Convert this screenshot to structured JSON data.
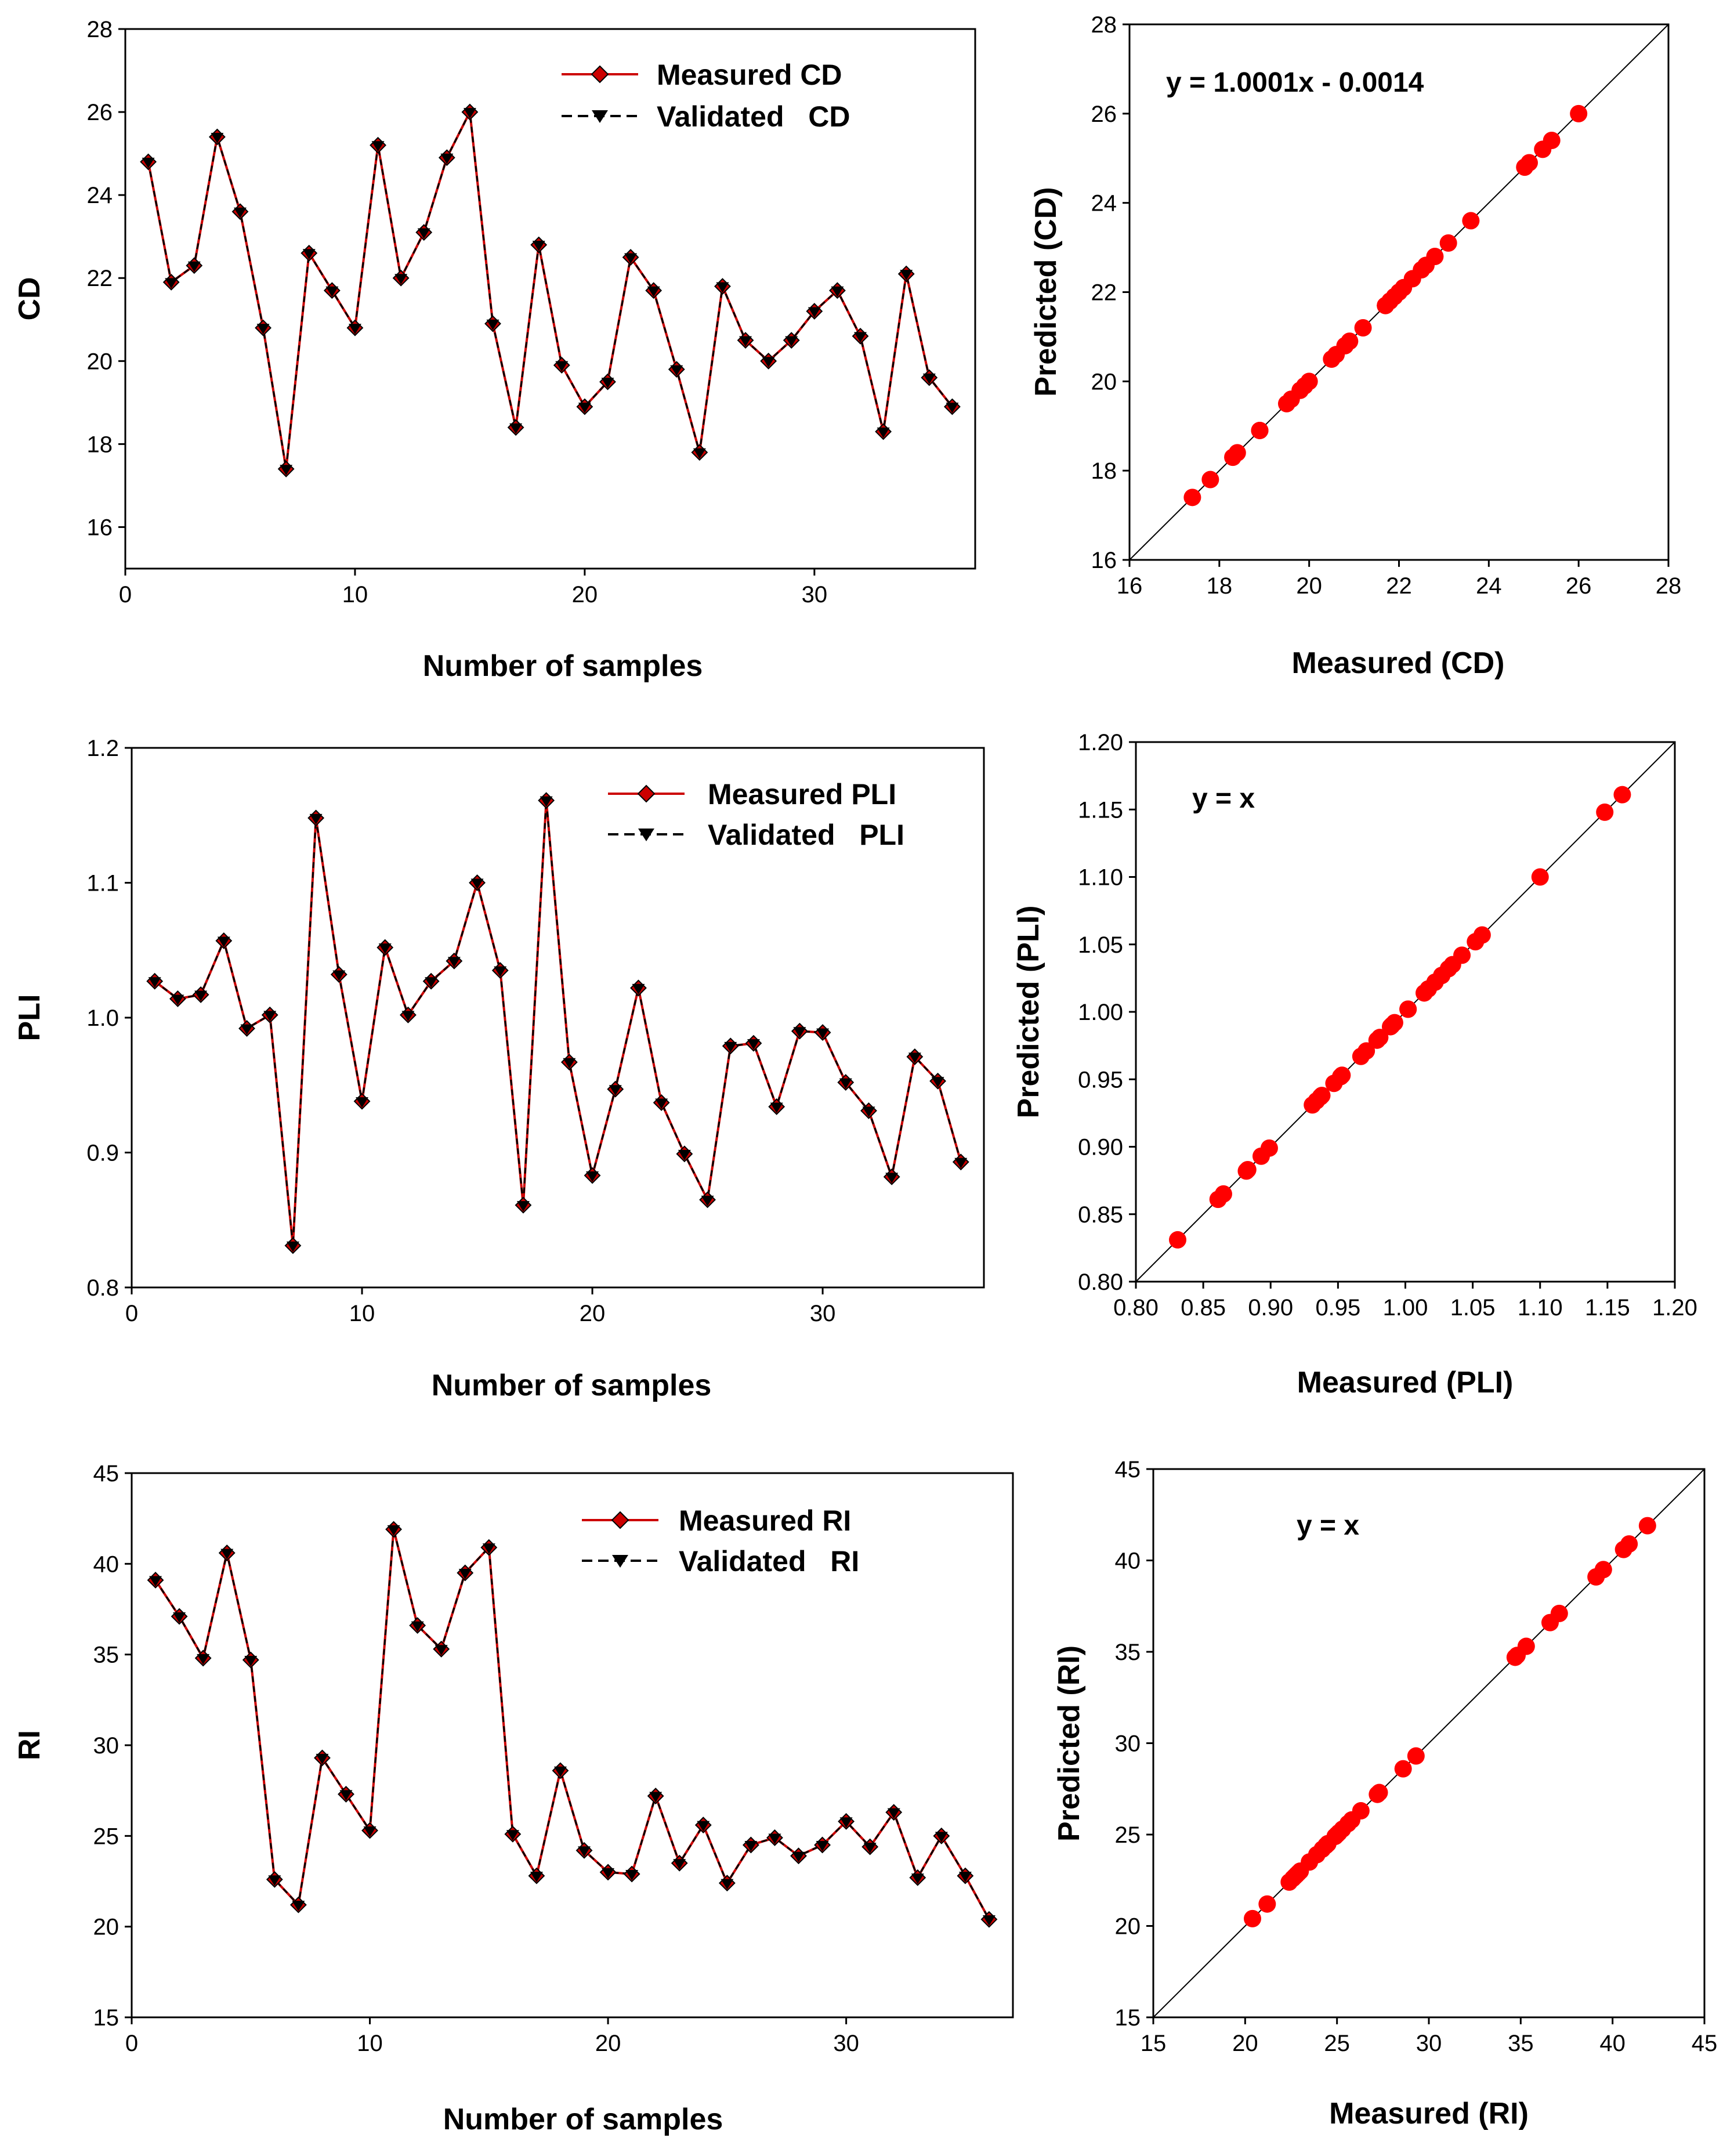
{
  "figure": {
    "colors": {
      "measured": "#cc0000",
      "validated": "#000000",
      "scatter": "#ff0000",
      "axis": "#000000"
    }
  },
  "chart_data": [
    {
      "id": "cd-series",
      "type": "line",
      "title": "",
      "xlabel": "Number of samples",
      "ylabel": "CD",
      "xlim": [
        0,
        37
      ],
      "ylim": [
        15,
        28
      ],
      "xticks": [
        "0",
        "10",
        "20",
        "30"
      ],
      "yticks": [
        "16",
        "18",
        "20",
        "22",
        "24",
        "26",
        "28"
      ],
      "x": [
        1,
        2,
        3,
        4,
        5,
        6,
        7,
        8,
        9,
        10,
        11,
        12,
        13,
        14,
        15,
        16,
        17,
        18,
        19,
        20,
        21,
        22,
        23,
        24,
        25,
        26,
        27,
        28,
        29,
        30,
        31,
        32,
        33,
        34,
        35,
        36
      ],
      "series": [
        {
          "name": "Measured CD",
          "values": [
            24.8,
            21.9,
            22.3,
            25.4,
            23.6,
            20.8,
            17.4,
            22.6,
            21.7,
            20.8,
            25.2,
            22.0,
            23.1,
            24.9,
            26.0,
            20.9,
            18.4,
            22.8,
            19.9,
            18.9,
            19.5,
            22.5,
            21.7,
            19.8,
            17.8,
            21.8,
            20.5,
            20.0,
            20.5,
            21.2,
            21.7,
            20.6,
            18.3,
            22.1,
            19.6,
            18.9
          ]
        },
        {
          "name": "Validated   CD",
          "values": [
            24.8,
            21.9,
            22.3,
            25.4,
            23.6,
            20.8,
            17.4,
            22.6,
            21.7,
            20.8,
            25.2,
            22.0,
            23.1,
            24.9,
            26.0,
            20.9,
            18.4,
            22.8,
            19.9,
            18.9,
            19.5,
            22.5,
            21.7,
            19.8,
            17.8,
            21.8,
            20.5,
            20.0,
            20.5,
            21.2,
            21.7,
            20.6,
            18.3,
            22.1,
            19.6,
            18.9
          ]
        }
      ]
    },
    {
      "id": "cd-scatter",
      "type": "scatter",
      "title": "",
      "xlabel": "Measured (CD)",
      "ylabel": "Predicted (CD)",
      "xlim": [
        16,
        28
      ],
      "ylim": [
        16,
        28
      ],
      "xticks": [
        "16",
        "18",
        "20",
        "22",
        "24",
        "26",
        "28"
      ],
      "yticks": [
        "16",
        "18",
        "20",
        "22",
        "24",
        "26",
        "28"
      ],
      "equation": "y = 1.0001x - 0.0014",
      "x": [
        24.8,
        21.9,
        22.3,
        25.4,
        23.6,
        20.8,
        17.4,
        22.6,
        21.7,
        20.8,
        25.2,
        22.0,
        23.1,
        24.9,
        26.0,
        20.9,
        18.4,
        22.8,
        19.9,
        18.9,
        19.5,
        22.5,
        21.7,
        19.8,
        17.8,
        21.8,
        20.5,
        20.0,
        20.5,
        21.2,
        21.7,
        20.6,
        18.3,
        22.1,
        19.6,
        18.9
      ],
      "y": [
        24.8,
        21.9,
        22.3,
        25.4,
        23.6,
        20.8,
        17.4,
        22.6,
        21.7,
        20.8,
        25.2,
        22.0,
        23.1,
        24.9,
        26.0,
        20.9,
        18.4,
        22.8,
        19.9,
        18.9,
        19.5,
        22.5,
        21.7,
        19.8,
        17.8,
        21.8,
        20.5,
        20.0,
        20.5,
        21.2,
        21.7,
        20.6,
        18.3,
        22.1,
        19.6,
        18.9
      ]
    },
    {
      "id": "pli-series",
      "type": "line",
      "title": "",
      "xlabel": "Number of samples",
      "ylabel": "PLI",
      "xlim": [
        0,
        37
      ],
      "ylim": [
        0.8,
        1.2
      ],
      "xticks": [
        "0",
        "10",
        "20",
        "30"
      ],
      "yticks": [
        "0.8",
        "0.9",
        "1.0",
        "1.1",
        "1.2"
      ],
      "x": [
        1,
        2,
        3,
        4,
        5,
        6,
        7,
        8,
        9,
        10,
        11,
        12,
        13,
        14,
        15,
        16,
        17,
        18,
        19,
        20,
        21,
        22,
        23,
        24,
        25,
        26,
        27,
        28,
        29,
        30,
        31,
        32,
        33,
        34,
        35,
        36
      ],
      "series": [
        {
          "name": "Measured PLI",
          "values": [
            1.027,
            1.014,
            1.017,
            1.057,
            0.992,
            1.002,
            0.831,
            1.148,
            1.032,
            0.938,
            1.052,
            1.002,
            1.027,
            1.042,
            1.1,
            1.035,
            0.861,
            1.161,
            0.967,
            0.883,
            0.947,
            1.022,
            0.937,
            0.899,
            0.865,
            0.979,
            0.981,
            0.934,
            0.99,
            0.989,
            0.952,
            0.931,
            0.882,
            0.971,
            0.953,
            0.893
          ]
        },
        {
          "name": "Validated   PLI",
          "values": [
            1.027,
            1.014,
            1.017,
            1.057,
            0.992,
            1.002,
            0.831,
            1.148,
            1.032,
            0.938,
            1.052,
            1.002,
            1.027,
            1.042,
            1.1,
            1.035,
            0.861,
            1.161,
            0.967,
            0.883,
            0.947,
            1.022,
            0.937,
            0.899,
            0.865,
            0.979,
            0.981,
            0.934,
            0.99,
            0.989,
            0.952,
            0.931,
            0.882,
            0.971,
            0.953,
            0.893
          ]
        }
      ]
    },
    {
      "id": "pli-scatter",
      "type": "scatter",
      "title": "",
      "xlabel": "Measured (PLI)",
      "ylabel": "Predicted (PLI)",
      "xlim": [
        0.8,
        1.2
      ],
      "ylim": [
        0.8,
        1.2
      ],
      "xticks": [
        "0.80",
        "0.85",
        "0.90",
        "0.95",
        "1.00",
        "1.05",
        "1.10",
        "1.15",
        "1.20"
      ],
      "yticks": [
        "0.80",
        "0.85",
        "0.90",
        "0.95",
        "1.00",
        "1.05",
        "1.10",
        "1.15",
        "1.20"
      ],
      "equation": "y = x",
      "x": [
        1.027,
        1.014,
        1.017,
        1.057,
        0.992,
        1.002,
        0.831,
        1.148,
        1.032,
        0.938,
        1.052,
        1.002,
        1.027,
        1.042,
        1.1,
        1.035,
        0.861,
        1.161,
        0.967,
        0.883,
        0.947,
        1.022,
        0.937,
        0.899,
        0.865,
        0.979,
        0.981,
        0.934,
        0.99,
        0.989,
        0.952,
        0.931,
        0.882,
        0.971,
        0.953,
        0.893
      ],
      "y": [
        1.027,
        1.014,
        1.017,
        1.057,
        0.992,
        1.002,
        0.831,
        1.148,
        1.032,
        0.938,
        1.052,
        1.002,
        1.027,
        1.042,
        1.1,
        1.035,
        0.861,
        1.161,
        0.967,
        0.883,
        0.947,
        1.022,
        0.937,
        0.899,
        0.865,
        0.979,
        0.981,
        0.934,
        0.99,
        0.989,
        0.952,
        0.931,
        0.882,
        0.971,
        0.953,
        0.893
      ]
    },
    {
      "id": "ri-series",
      "type": "line",
      "title": "",
      "xlabel": "Number of samples",
      "ylabel": "RI",
      "xlim": [
        0,
        37
      ],
      "ylim": [
        15,
        45
      ],
      "xticks": [
        "0",
        "10",
        "20",
        "30"
      ],
      "yticks": [
        "15",
        "20",
        "25",
        "30",
        "35",
        "40",
        "45"
      ],
      "x": [
        1,
        2,
        3,
        4,
        5,
        6,
        7,
        8,
        9,
        10,
        11,
        12,
        13,
        14,
        15,
        16,
        17,
        18,
        19,
        20,
        21,
        22,
        23,
        24,
        25,
        26,
        27,
        28,
        29,
        30,
        31,
        32,
        33,
        34,
        35,
        36
      ],
      "series": [
        {
          "name": "Measured RI",
          "values": [
            39.1,
            37.1,
            34.8,
            40.6,
            34.7,
            22.6,
            21.2,
            29.3,
            27.3,
            25.3,
            41.9,
            36.6,
            35.3,
            39.5,
            40.9,
            25.1,
            22.8,
            28.6,
            24.2,
            23.0,
            22.9,
            27.2,
            23.5,
            25.6,
            22.4,
            24.5,
            24.9,
            23.9,
            24.5,
            25.8,
            24.4,
            26.3,
            22.7,
            25.0,
            22.8,
            20.4
          ]
        },
        {
          "name": "Validated   RI",
          "values": [
            39.1,
            37.1,
            34.8,
            40.6,
            34.7,
            22.6,
            21.2,
            29.3,
            27.3,
            25.3,
            41.9,
            36.6,
            35.3,
            39.5,
            40.9,
            25.1,
            22.8,
            28.6,
            24.2,
            23.0,
            22.9,
            27.2,
            23.5,
            25.6,
            22.4,
            24.5,
            24.9,
            23.9,
            24.5,
            25.8,
            24.4,
            26.3,
            22.7,
            25.0,
            22.8,
            20.4
          ]
        }
      ]
    },
    {
      "id": "ri-scatter",
      "type": "scatter",
      "title": "",
      "xlabel": "Measured (RI)",
      "ylabel": "Predicted (RI)",
      "xlim": [
        15,
        45
      ],
      "ylim": [
        15,
        45
      ],
      "xticks": [
        "15",
        "20",
        "25",
        "30",
        "35",
        "40",
        "45"
      ],
      "yticks": [
        "15",
        "20",
        "25",
        "30",
        "35",
        "40",
        "45"
      ],
      "equation": "y = x",
      "x": [
        39.1,
        37.1,
        34.8,
        40.6,
        34.7,
        22.6,
        21.2,
        29.3,
        27.3,
        25.3,
        41.9,
        36.6,
        35.3,
        39.5,
        40.9,
        25.1,
        22.8,
        28.6,
        24.2,
        23.0,
        22.9,
        27.2,
        23.5,
        25.6,
        22.4,
        24.5,
        24.9,
        23.9,
        24.5,
        25.8,
        24.4,
        26.3,
        22.7,
        25.0,
        22.8,
        20.4
      ],
      "y": [
        39.1,
        37.1,
        34.8,
        40.6,
        34.7,
        22.6,
        21.2,
        29.3,
        27.3,
        25.3,
        41.9,
        36.6,
        35.3,
        39.5,
        40.9,
        25.1,
        22.8,
        28.6,
        24.2,
        23.0,
        22.9,
        27.2,
        23.5,
        25.6,
        22.4,
        24.5,
        24.9,
        23.9,
        24.5,
        25.8,
        24.4,
        26.3,
        22.7,
        25.0,
        22.8,
        20.4
      ]
    }
  ]
}
